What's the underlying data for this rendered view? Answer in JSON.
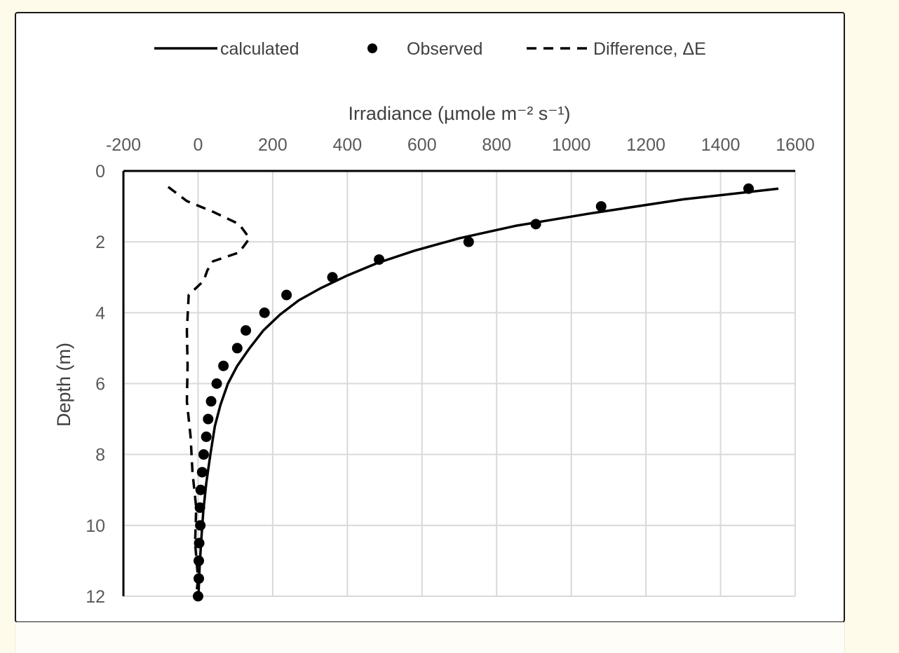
{
  "chart_data": {
    "type": "line",
    "title": "",
    "xlabel": "Irradiance (µmole m⁻² s⁻¹)",
    "ylabel": "Depth (m)",
    "xlim": [
      -200,
      1600
    ],
    "ylim": [
      0,
      12
    ],
    "x_ticks": [
      -200,
      0,
      200,
      400,
      600,
      800,
      1000,
      1200,
      1400,
      1600
    ],
    "y_ticks": [
      0,
      2,
      4,
      6,
      8,
      10,
      12
    ],
    "x_axis_position": "top",
    "y_axis_inverted": true,
    "grid": true,
    "legend_position": "top",
    "series": [
      {
        "name": "calculated",
        "style": "solid-line",
        "color": "#000000",
        "points": [
          [
            1555,
            0.5
          ],
          [
            1300,
            0.8
          ],
          [
            1050,
            1.2
          ],
          [
            850,
            1.55
          ],
          [
            700,
            1.9
          ],
          [
            580,
            2.25
          ],
          [
            480,
            2.6
          ],
          [
            400,
            2.95
          ],
          [
            330,
            3.3
          ],
          [
            270,
            3.65
          ],
          [
            220,
            4.05
          ],
          [
            175,
            4.5
          ],
          [
            138,
            5.0
          ],
          [
            105,
            5.5
          ],
          [
            80,
            6.0
          ],
          [
            60,
            6.6
          ],
          [
            45,
            7.2
          ],
          [
            33,
            8.0
          ],
          [
            22,
            8.8
          ],
          [
            14,
            9.6
          ],
          [
            8,
            10.5
          ],
          [
            4,
            11.2
          ],
          [
            1,
            12.0
          ]
        ]
      },
      {
        "name": "Observed",
        "style": "marker",
        "color": "#000000",
        "points": [
          [
            1475,
            0.5
          ],
          [
            1080,
            1.0
          ],
          [
            905,
            1.5
          ],
          [
            725,
            2.0
          ],
          [
            485,
            2.5
          ],
          [
            360,
            3.0
          ],
          [
            237,
            3.5
          ],
          [
            178,
            4.0
          ],
          [
            128,
            4.5
          ],
          [
            105,
            5.0
          ],
          [
            68,
            5.5
          ],
          [
            50,
            6.0
          ],
          [
            35,
            6.5
          ],
          [
            27,
            7.0
          ],
          [
            22,
            7.5
          ],
          [
            15,
            8.0
          ],
          [
            11,
            8.5
          ],
          [
            7,
            9.0
          ],
          [
            5,
            9.5
          ],
          [
            6,
            10.0
          ],
          [
            3,
            10.5
          ],
          [
            2,
            11.0
          ],
          [
            2,
            11.5
          ],
          [
            0,
            12.0
          ]
        ]
      },
      {
        "name": "Difference, ΔE",
        "style": "dashed-line",
        "color": "#000000",
        "points": [
          [
            -80,
            0.45
          ],
          [
            -30,
            0.85
          ],
          [
            40,
            1.15
          ],
          [
            110,
            1.5
          ],
          [
            138,
            1.9
          ],
          [
            110,
            2.3
          ],
          [
            40,
            2.55
          ],
          [
            25,
            2.8
          ],
          [
            15,
            3.1
          ],
          [
            -25,
            3.5
          ],
          [
            -30,
            4.5
          ],
          [
            -28,
            5.5
          ],
          [
            -30,
            6.5
          ],
          [
            -20,
            7.5
          ],
          [
            -15,
            8.5
          ],
          [
            -5,
            9.5
          ],
          [
            -8,
            10.5
          ],
          [
            0,
            11.5
          ],
          [
            -5,
            12.0
          ]
        ]
      }
    ]
  }
}
